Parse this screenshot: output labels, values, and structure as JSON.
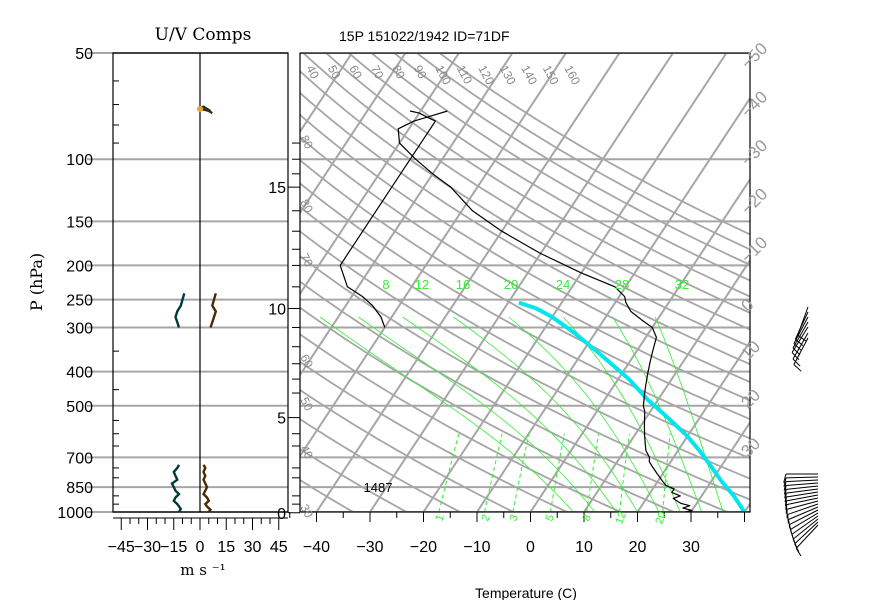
{
  "header": {
    "left_title": "U/V Comps",
    "right_title": "15P 151022/1942 ID=71DF"
  },
  "colors": {
    "grid": "#a6a6a6",
    "mixing_ratio": "#33ee33",
    "temperature": "#000000",
    "parcel": "#00e5ee",
    "u_wind": "#003b3b",
    "v_wind": "#4a2a00",
    "wind_highlight": "#f0a030"
  },
  "chart_data": [
    {
      "type": "line",
      "panel": "uv_components",
      "title": "U/V Comps",
      "ylabel": "P (hPa)",
      "xlabel": "m s ⁻¹",
      "ylim": [
        1000,
        50
      ],
      "y_scale": "log",
      "xlim": [
        -50,
        50
      ],
      "x_ticks": [
        "−45",
        "−30",
        "−15",
        "0",
        "15",
        "30",
        "45"
      ],
      "x_tick_values": [
        -45,
        -30,
        -15,
        0,
        15,
        30,
        45
      ],
      "y_ticks": [
        "50",
        "100",
        "150",
        "200",
        "250",
        "300",
        "400",
        "500",
        "700",
        "850",
        "1000"
      ],
      "y_tick_values": [
        50,
        100,
        150,
        200,
        250,
        300,
        400,
        500,
        700,
        850,
        1000
      ],
      "series": [
        {
          "component": "u",
          "points": [
            [
              -12,
              1000
            ],
            [
              -11,
              980
            ],
            [
              -13,
              950
            ],
            [
              -15,
              930
            ],
            [
              -14,
              910
            ],
            [
              -12,
              890
            ],
            [
              -14,
              870
            ],
            [
              -15,
              850
            ],
            [
              -16,
              830
            ],
            [
              -13,
              810
            ],
            [
              -14,
              790
            ],
            [
              -15,
              770
            ],
            [
              -13,
              750
            ],
            [
              -12,
              735
            ]
          ]
        },
        {
          "component": "v",
          "points": [
            [
              5,
              1000
            ],
            [
              6,
              985
            ],
            [
              4,
              965
            ],
            [
              3,
              950
            ],
            [
              5,
              930
            ],
            [
              4,
              910
            ],
            [
              2,
              890
            ],
            [
              3,
              870
            ],
            [
              4,
              850
            ],
            [
              3,
              830
            ],
            [
              2,
              810
            ],
            [
              3,
              790
            ],
            [
              2,
              770
            ],
            [
              3,
              750
            ],
            [
              2,
              735
            ]
          ]
        },
        {
          "component": "u",
          "points": [
            [
              -12,
              300
            ],
            [
              -13,
              290
            ],
            [
              -14,
              280
            ],
            [
              -13,
              270
            ],
            [
              -11,
              260
            ],
            [
              -10,
              250
            ],
            [
              -9,
              240
            ]
          ]
        },
        {
          "component": "v",
          "points": [
            [
              6,
              300
            ],
            [
              7,
              290
            ],
            [
              8,
              280
            ],
            [
              9,
              270
            ],
            [
              7,
              260
            ],
            [
              8,
              250
            ],
            [
              9,
              240
            ]
          ]
        },
        {
          "component": "u",
          "points": [
            [
              -1,
              72
            ],
            [
              2,
              71
            ],
            [
              4,
              72
            ],
            [
              6,
              73
            ]
          ]
        },
        {
          "component": "v",
          "points": [
            [
              0,
              72
            ],
            [
              3,
              72.5
            ],
            [
              5,
              73
            ],
            [
              7,
              74
            ]
          ]
        }
      ]
    },
    {
      "type": "line",
      "panel": "skewt",
      "title": "15P 151022/1942 ID=71DF",
      "xlabel": "Temperature (C)",
      "xlim": [
        -45,
        40
      ],
      "x_ticks": [
        "−40",
        "−30",
        "−20",
        "−10",
        "0",
        "10",
        "20",
        "30"
      ],
      "x_tick_values": [
        -40,
        -30,
        -20,
        -10,
        0,
        10,
        20,
        30
      ],
      "ylim": [
        1000,
        50
      ],
      "y_scale": "log",
      "height_ticks": [
        "0",
        "5",
        "10",
        "15"
      ],
      "height_tick_pressures": [
        1013,
        540,
        265,
        120
      ],
      "height_ticks_km_note": "",
      "mixing_ratio_labels": [
        "8",
        "12",
        "16",
        "20",
        "24",
        "28",
        "32"
      ],
      "mixing_ratio_bottom_labels": [
        "1",
        "2",
        "3",
        "5",
        "8",
        "12",
        "20"
      ],
      "theta_labels_top": [
        "40",
        "50",
        "60",
        "70",
        "80",
        "90",
        "100",
        "110",
        "120",
        "130",
        "140",
        "150",
        "160"
      ],
      "isotherm_labels_right": [
        "−50",
        "−40",
        "−30",
        "−20",
        "−10",
        "0",
        "10",
        "20",
        "30"
      ],
      "theta_labels_left": [
        "80",
        "80",
        "70",
        "60",
        "50",
        "40",
        "30"
      ],
      "annotation": "1487",
      "temperature": [
        [
          29,
          1000
        ],
        [
          30,
          990
        ],
        [
          28,
          975
        ],
        [
          29,
          960
        ],
        [
          27,
          945
        ],
        [
          26,
          930
        ],
        [
          25,
          915
        ],
        [
          26,
          900
        ],
        [
          24,
          880
        ],
        [
          24,
          860
        ],
        [
          22,
          840
        ],
        [
          21,
          820
        ],
        [
          20,
          800
        ],
        [
          19,
          780
        ],
        [
          18,
          760
        ],
        [
          17,
          740
        ],
        [
          16,
          720
        ],
        [
          15.5,
          700
        ],
        [
          14,
          670
        ],
        [
          13,
          640
        ],
        [
          12,
          610
        ],
        [
          11,
          580
        ],
        [
          10,
          550
        ],
        [
          9,
          520
        ],
        [
          8,
          500
        ],
        [
          7,
          470
        ],
        [
          6,
          440
        ],
        [
          5,
          410
        ],
        [
          4,
          380
        ],
        [
          3,
          350
        ],
        [
          2,
          320
        ],
        [
          0,
          300
        ],
        [
          -3,
          285
        ],
        [
          -6,
          270
        ],
        [
          -8,
          255
        ],
        [
          -9,
          245
        ],
        [
          -12,
          230
        ],
        [
          -20,
          210
        ],
        [
          -30,
          185
        ],
        [
          -40,
          160
        ],
        [
          -48,
          140
        ],
        [
          -55,
          120
        ],
        [
          -60,
          110
        ],
        [
          -65,
          100
        ],
        [
          -70,
          90
        ],
        [
          -72,
          82
        ],
        [
          -70,
          78
        ],
        [
          -67,
          75
        ],
        [
          -65,
          73
        ]
      ],
      "dewpoint": [
        [
          -72,
          73
        ],
        [
          -70,
          74
        ],
        [
          -68,
          76
        ],
        [
          -66,
          78
        ],
        [
          -66,
          82
        ],
        [
          -66,
          100
        ],
        [
          -66,
          150
        ],
        [
          -66,
          200
        ],
        [
          -62,
          230
        ],
        [
          -58,
          245
        ],
        [
          -55,
          260
        ],
        [
          -52,
          280
        ],
        [
          -50,
          300
        ]
      ],
      "parcel": [
        [
          40,
          1000
        ],
        [
          36,
          900
        ],
        [
          32,
          820
        ],
        [
          28,
          740
        ],
        [
          24,
          670
        ],
        [
          20,
          610
        ],
        [
          14,
          540
        ],
        [
          8,
          480
        ],
        [
          2,
          420
        ],
        [
          -6,
          360
        ],
        [
          -14,
          310
        ],
        [
          -20,
          280
        ],
        [
          -24,
          265
        ],
        [
          -28,
          255
        ]
      ]
    }
  ]
}
